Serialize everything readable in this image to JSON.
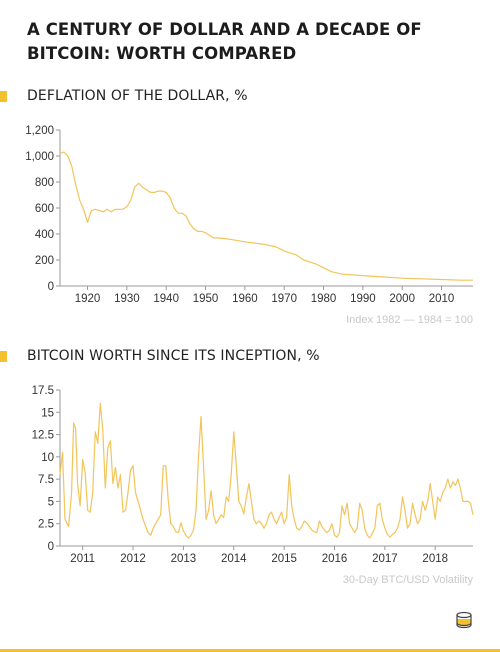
{
  "title": "A CENTURY OF DOLLAR AND A DECADE OF BITCOIN: WORTH COMPARED",
  "colors": {
    "accent": "#f2c12e",
    "line": "#f2c45a"
  },
  "logo_icon": "coin-stack-icon",
  "chart_data": [
    {
      "type": "line",
      "title": "DEFLATION OF THE DOLLAR, %",
      "note": "Index 1982 — 1984 = 100",
      "xlim": [
        1913,
        2018
      ],
      "ylim": [
        0,
        1200
      ],
      "x_ticks": [
        1920,
        1930,
        1940,
        1950,
        1960,
        1970,
        1980,
        1990,
        2000,
        2010
      ],
      "y_ticks": [
        0,
        200,
        400,
        600,
        800,
        1000,
        1200
      ],
      "y_tick_labels": [
        "0",
        "200",
        "400",
        "600",
        "800",
        "1,000",
        "1,200"
      ],
      "grid": false,
      "series": [
        {
          "x": [
            1913,
            1914,
            1915,
            1916,
            1917,
            1918,
            1919,
            1920,
            1921,
            1922,
            1923,
            1924,
            1925,
            1926,
            1927,
            1928,
            1929,
            1930,
            1931,
            1932,
            1933,
            1934,
            1935,
            1936,
            1937,
            1938,
            1939,
            1940,
            1941,
            1942,
            1943,
            1944,
            1945,
            1946,
            1947,
            1948,
            1949,
            1950,
            1951,
            1952,
            1953,
            1955,
            1957,
            1960,
            1965,
            1968,
            1970,
            1973,
            1975,
            1978,
            1980,
            1982,
            1985,
            1990,
            1995,
            2000,
            2005,
            2010,
            2015,
            2018
          ],
          "y": [
            1020,
            1030,
            1000,
            920,
            780,
            660,
            590,
            490,
            580,
            590,
            580,
            570,
            590,
            570,
            590,
            590,
            590,
            610,
            660,
            760,
            790,
            760,
            740,
            720,
            720,
            730,
            730,
            720,
            680,
            600,
            560,
            560,
            540,
            480,
            440,
            420,
            420,
            410,
            390,
            370,
            370,
            365,
            355,
            340,
            320,
            300,
            270,
            240,
            200,
            170,
            140,
            110,
            90,
            80,
            70,
            60,
            55,
            50,
            45,
            45
          ]
        }
      ]
    },
    {
      "type": "line",
      "title": "BITCOIN WORTH SINCE ITS INCEPTION, %",
      "note": "30-Day BTC/USD Volatility",
      "xlim": [
        2010.55,
        2018.75
      ],
      "ylim": [
        0,
        17.5
      ],
      "x_ticks": [
        2011,
        2012,
        2013,
        2014,
        2015,
        2016,
        2017,
        2018
      ],
      "y_ticks": [
        0,
        2.5,
        5,
        7.5,
        10,
        12.5,
        15,
        17.5
      ],
      "y_tick_labels": [
        "0",
        "2.5",
        "5",
        "7.5",
        "10",
        "12.5",
        "15",
        "17.5"
      ],
      "grid": false,
      "series": [
        {
          "x": [
            2010.55,
            2010.6,
            2010.65,
            2010.72,
            2010.78,
            2010.82,
            2010.86,
            2010.9,
            2010.95,
            2011.0,
            2011.05,
            2011.1,
            2011.15,
            2011.2,
            2011.25,
            2011.3,
            2011.35,
            2011.4,
            2011.45,
            2011.5,
            2011.55,
            2011.6,
            2011.65,
            2011.7,
            2011.75,
            2011.8,
            2011.85,
            2011.9,
            2011.95,
            2012.0,
            2012.05,
            2012.1,
            2012.15,
            2012.2,
            2012.25,
            2012.3,
            2012.35,
            2012.4,
            2012.45,
            2012.5,
            2012.55,
            2012.6,
            2012.65,
            2012.7,
            2012.75,
            2012.8,
            2012.85,
            2012.9,
            2012.95,
            2013.0,
            2013.05,
            2013.1,
            2013.15,
            2013.2,
            2013.25,
            2013.3,
            2013.35,
            2013.4,
            2013.45,
            2013.5,
            2013.55,
            2013.6,
            2013.65,
            2013.7,
            2013.75,
            2013.8,
            2013.85,
            2013.9,
            2013.95,
            2014.0,
            2014.05,
            2014.1,
            2014.15,
            2014.2,
            2014.25,
            2014.3,
            2014.35,
            2014.4,
            2014.45,
            2014.5,
            2014.55,
            2014.6,
            2014.65,
            2014.7,
            2014.75,
            2014.8,
            2014.85,
            2014.9,
            2014.95,
            2015.0,
            2015.05,
            2015.1,
            2015.15,
            2015.2,
            2015.25,
            2015.3,
            2015.35,
            2015.4,
            2015.45,
            2015.5,
            2015.55,
            2015.6,
            2015.65,
            2015.7,
            2015.75,
            2015.8,
            2015.85,
            2015.9,
            2015.95,
            2016.0,
            2016.05,
            2016.1,
            2016.15,
            2016.2,
            2016.25,
            2016.3,
            2016.35,
            2016.4,
            2016.45,
            2016.5,
            2016.55,
            2016.6,
            2016.65,
            2016.7,
            2016.75,
            2016.8,
            2016.85,
            2016.9,
            2016.95,
            2017.0,
            2017.05,
            2017.1,
            2017.15,
            2017.2,
            2017.25,
            2017.3,
            2017.35,
            2017.4,
            2017.45,
            2017.5,
            2017.55,
            2017.6,
            2017.65,
            2017.7,
            2017.75,
            2017.8,
            2017.85,
            2017.9,
            2017.95,
            2018.0,
            2018.05,
            2018.1,
            2018.15,
            2018.2,
            2018.25,
            2018.3,
            2018.35,
            2018.4,
            2018.45,
            2018.5,
            2018.55,
            2018.6,
            2018.65,
            2018.7,
            2018.75
          ],
          "y": [
            8,
            10.5,
            3,
            2.2,
            6,
            13.8,
            13.2,
            7,
            4.5,
            9.7,
            8.2,
            4,
            3.8,
            6,
            12.8,
            11.5,
            16,
            13,
            6.5,
            11,
            11.8,
            7,
            8.8,
            6.5,
            8,
            3.8,
            4,
            6,
            8.5,
            9,
            6,
            5,
            4,
            3,
            2.2,
            1.5,
            1.2,
            2,
            2.5,
            3,
            3.5,
            9,
            9,
            5,
            2.5,
            2.2,
            1.6,
            1.5,
            2.6,
            1.7,
            1.2,
            0.9,
            1.2,
            1.8,
            4,
            10,
            14.5,
            9,
            3,
            4,
            6.2,
            3.5,
            2.5,
            3,
            3.5,
            3.2,
            5.5,
            5,
            8,
            12.8,
            9,
            5,
            4.5,
            3.6,
            5.5,
            7,
            5,
            3,
            2.5,
            2.8,
            2.5,
            2,
            2.5,
            3.5,
            3.8,
            3,
            2.5,
            3.2,
            3.8,
            2.5,
            3.2,
            8,
            4.5,
            3,
            2,
            1.8,
            2.2,
            2.8,
            2.6,
            2.2,
            1.8,
            1.6,
            1.5,
            2.8,
            2.2,
            1.8,
            1.5,
            1.8,
            2.5,
            1.2,
            1,
            1.5,
            4.5,
            3.5,
            4.8,
            2.5,
            2,
            1.5,
            2,
            4.8,
            4,
            2,
            1.2,
            0.9,
            1.4,
            2,
            4.5,
            4.8,
            3,
            2,
            1.3,
            1,
            1.3,
            1.5,
            2,
            3,
            5.5,
            4,
            2,
            2.5,
            4.8,
            3.5,
            2.5,
            3,
            5,
            4,
            5,
            7,
            5,
            3,
            5.5,
            5,
            6,
            6.5,
            7.5,
            6.5,
            7.2,
            6.8,
            7.5,
            6.5,
            5,
            5,
            5,
            4.8,
            3.5
          ]
        }
      ]
    }
  ]
}
